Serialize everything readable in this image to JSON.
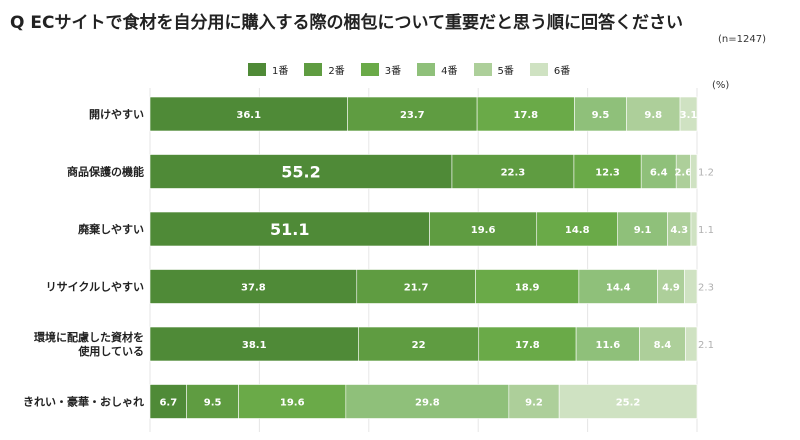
{
  "title": "Q ECサイトで食材を自分用に購入する際の梱包について重要だと思う順に回答ください",
  "sample_size": "(n=1247)",
  "unit": "(%)",
  "colors": {
    "rank1": "#4f8a37",
    "rank2": "#5f9c41",
    "rank3": "#6aaa48",
    "rank4": "#8fc07a",
    "rank5": "#adcf9a",
    "rank6": "#cfe2c2",
    "grid": "#e6e6e6"
  },
  "chart_data": {
    "type": "bar",
    "orientation": "horizontal",
    "stacked": true,
    "title": "Q ECサイトで食材を自分用に購入する際の梱包について重要だと思う順に回答ください",
    "unit": "(%)",
    "xlim": [
      0,
      100
    ],
    "grid": true,
    "legend_position": "top",
    "categories": [
      [
        "開けやすい"
      ],
      [
        "商品保護の機能"
      ],
      [
        "廃棄しやすい"
      ],
      [
        "リサイクルしやすい"
      ],
      [
        "環境に配慮した資材を",
        "使用している"
      ],
      [
        "きれい・豪華・おしゃれ"
      ]
    ],
    "series": [
      {
        "name": "1番",
        "values": [
          36.1,
          55.2,
          51.1,
          37.8,
          38.1,
          6.7
        ]
      },
      {
        "name": "2番",
        "values": [
          23.7,
          22.3,
          19.6,
          21.7,
          22,
          9.5
        ]
      },
      {
        "name": "3番",
        "values": [
          17.8,
          12.3,
          14.8,
          18.9,
          17.8,
          19.6
        ]
      },
      {
        "name": "4番",
        "values": [
          9.5,
          6.4,
          9.1,
          14.4,
          11.6,
          29.8
        ]
      },
      {
        "name": "5番",
        "values": [
          9.8,
          2.6,
          4.3,
          4.9,
          8.4,
          9.2
        ]
      },
      {
        "name": "6番",
        "values": [
          3.1,
          1.2,
          1.1,
          2.3,
          2.1,
          25.2
        ]
      }
    ]
  }
}
